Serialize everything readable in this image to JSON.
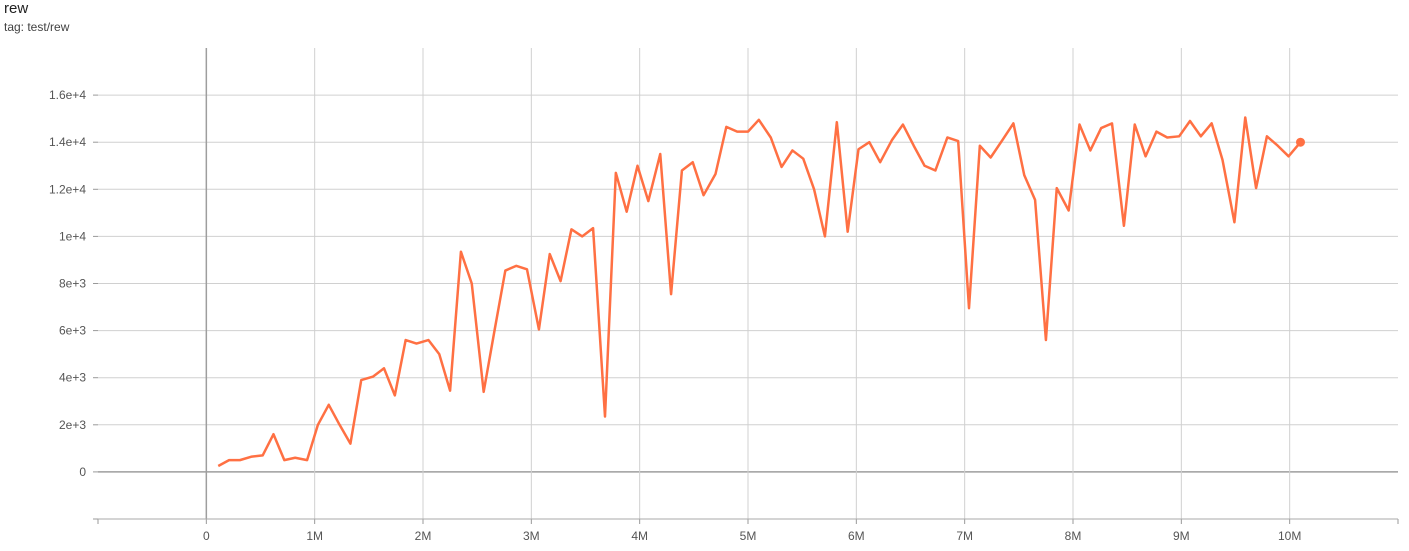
{
  "chart_data": {
    "type": "line",
    "title": "rew",
    "subtitle": "tag: test/rew",
    "xlabel": "",
    "ylabel": "",
    "xlim": [
      -1000000,
      11000000
    ],
    "ylim": [
      -2000,
      18000
    ],
    "grid": true,
    "x_ticks": [
      {
        "v": 0,
        "label": "0"
      },
      {
        "v": 1000000,
        "label": "1M"
      },
      {
        "v": 2000000,
        "label": "2M"
      },
      {
        "v": 3000000,
        "label": "3M"
      },
      {
        "v": 4000000,
        "label": "4M"
      },
      {
        "v": 5000000,
        "label": "5M"
      },
      {
        "v": 6000000,
        "label": "6M"
      },
      {
        "v": 7000000,
        "label": "7M"
      },
      {
        "v": 8000000,
        "label": "8M"
      },
      {
        "v": 9000000,
        "label": "9M"
      },
      {
        "v": 10000000,
        "label": "10M"
      }
    ],
    "y_ticks": [
      {
        "v": 0,
        "label": "0"
      },
      {
        "v": 2000,
        "label": "2e+3"
      },
      {
        "v": 4000,
        "label": "4e+3"
      },
      {
        "v": 6000,
        "label": "6e+3"
      },
      {
        "v": 8000,
        "label": "8e+3"
      },
      {
        "v": 10000,
        "label": "1e+4"
      },
      {
        "v": 12000,
        "label": "1.2e+4"
      },
      {
        "v": 14000,
        "label": "1.4e+4"
      },
      {
        "v": 16000,
        "label": "1.6e+4"
      }
    ],
    "series": [
      {
        "color": "#ff7043",
        "x_millions": [
          0.11,
          0.21,
          0.31,
          0.42,
          0.52,
          0.62,
          0.72,
          0.82,
          0.93,
          1.03,
          1.13,
          1.23,
          1.33,
          1.43,
          1.54,
          1.64,
          1.74,
          1.84,
          1.94,
          2.05,
          2.15,
          2.25,
          2.35,
          2.45,
          2.56,
          2.66,
          2.76,
          2.86,
          2.96,
          3.07,
          3.17,
          3.27,
          3.37,
          3.47,
          3.57,
          3.68,
          3.78,
          3.88,
          3.98,
          4.08,
          4.19,
          4.29,
          4.39,
          4.49,
          4.59,
          4.7,
          4.8,
          4.9,
          5.0,
          5.1,
          5.21,
          5.31,
          5.41,
          5.51,
          5.61,
          5.71,
          5.82,
          5.92,
          6.02,
          6.12,
          6.22,
          6.33,
          6.43,
          6.53,
          6.63,
          6.73,
          6.84,
          6.94,
          7.04,
          7.14,
          7.24,
          7.35,
          7.45,
          7.55,
          7.65,
          7.75,
          7.85,
          7.96,
          8.06,
          8.16,
          8.26,
          8.36,
          8.47,
          8.57,
          8.67,
          8.77,
          8.87,
          8.98,
          9.08,
          9.18,
          9.28,
          9.38,
          9.49,
          9.59,
          9.69,
          9.79,
          9.89,
          9.99,
          10.1
        ],
        "values": [
          250,
          500,
          500,
          650,
          700,
          1600,
          500,
          600,
          500,
          2000,
          2850,
          2000,
          1200,
          3900,
          4050,
          4400,
          3250,
          5600,
          5450,
          5600,
          5000,
          3450,
          9350,
          8000,
          3400,
          6000,
          8550,
          8750,
          8600,
          6050,
          9250,
          8100,
          10300,
          10000,
          10350,
          2350,
          12700,
          11050,
          13000,
          11500,
          13500,
          7550,
          12800,
          13150,
          11750,
          12650,
          14650,
          14450,
          14450,
          14950,
          14200,
          12950,
          13650,
          13300,
          12000,
          10000,
          14850,
          10200,
          13700,
          14000,
          13150,
          14100,
          14750,
          13850,
          13000,
          12800,
          14200,
          14050,
          6950,
          13850,
          13350,
          14100,
          14800,
          12600,
          11550,
          5600,
          12050,
          11100,
          14750,
          13650,
          14600,
          14800,
          10450,
          14750,
          13400,
          14450,
          14200,
          14250,
          14900,
          14250,
          14800,
          13250,
          10600,
          15050,
          12050,
          14250,
          13850,
          13400,
          14000
        ]
      }
    ]
  }
}
